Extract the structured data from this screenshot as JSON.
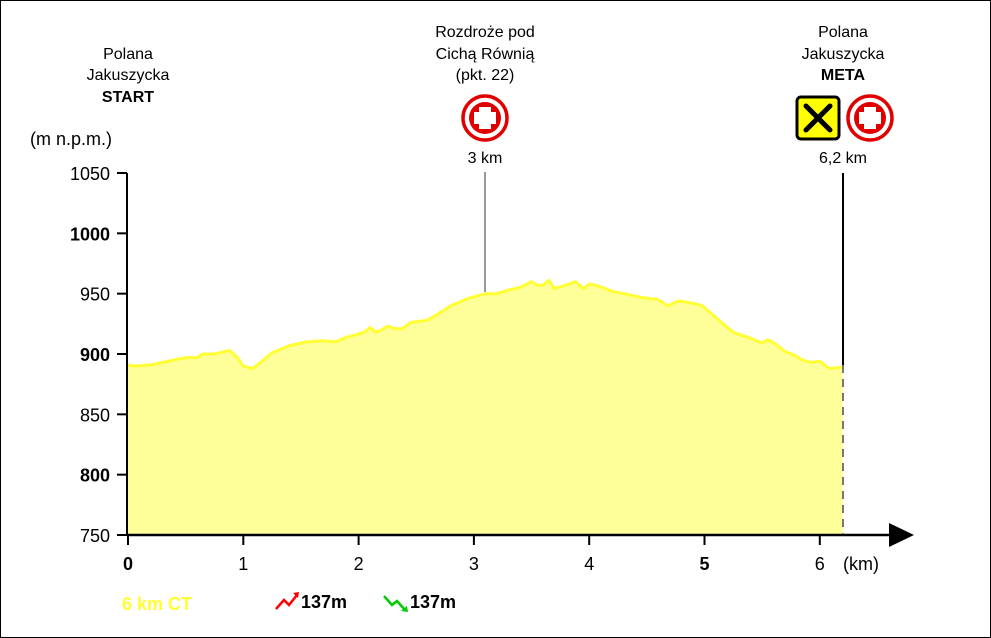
{
  "chart_data": {
    "type": "area",
    "ylabel": "(m n.p.m.)",
    "xlabel": "(km)",
    "xlim": [
      0,
      6.85
    ],
    "ylim": [
      750,
      1050
    ],
    "y_ticks": [
      {
        "value": 1050,
        "label": "1050",
        "bold": false
      },
      {
        "value": 1000,
        "label": "1000",
        "bold": true
      },
      {
        "value": 950,
        "label": "950",
        "bold": false
      },
      {
        "value": 900,
        "label": "900",
        "bold": true
      },
      {
        "value": 850,
        "label": "850",
        "bold": false
      },
      {
        "value": 800,
        "label": "800",
        "bold": true
      },
      {
        "value": 750,
        "label": "750",
        "bold": false
      }
    ],
    "x_ticks": [
      {
        "value": 0,
        "label": "0",
        "bold": true
      },
      {
        "value": 1,
        "label": "1",
        "bold": false
      },
      {
        "value": 2,
        "label": "2",
        "bold": false
      },
      {
        "value": 3,
        "label": "3",
        "bold": false
      },
      {
        "value": 4,
        "label": "4",
        "bold": false
      },
      {
        "value": 5,
        "label": "5",
        "bold": true
      },
      {
        "value": 6,
        "label": "6",
        "bold": false
      }
    ],
    "fill_color": "#ffff99",
    "line_color": "#ffff33",
    "grid": false,
    "profile": {
      "x": [
        0,
        0.05,
        0.2,
        0.35,
        0.5,
        0.6,
        0.65,
        0.75,
        0.88,
        0.95,
        1.0,
        1.08,
        1.15,
        1.25,
        1.4,
        1.55,
        1.7,
        1.8,
        1.9,
        1.98,
        2.05,
        2.1,
        2.15,
        2.2,
        2.25,
        2.32,
        2.38,
        2.45,
        2.52,
        2.6,
        2.72,
        2.8,
        2.95,
        3.1,
        3.2,
        3.3,
        3.4,
        3.5,
        3.55,
        3.6,
        3.65,
        3.7,
        3.72,
        3.8,
        3.88,
        3.95,
        4.0,
        4.05,
        4.12,
        4.2,
        4.3,
        4.45,
        4.6,
        4.68,
        4.78,
        4.9,
        4.98,
        5.1,
        5.25,
        5.4,
        5.5,
        5.55,
        5.62,
        5.7,
        5.78,
        5.85,
        5.92,
        6.0,
        6.08,
        6.2
      ],
      "y": [
        891,
        890,
        891,
        894,
        897,
        897,
        900,
        900,
        903,
        897,
        890,
        888,
        893,
        901,
        907,
        910,
        911,
        910,
        914,
        916,
        918,
        922,
        918,
        920,
        923,
        921,
        921,
        926,
        927,
        928,
        935,
        940,
        946,
        950,
        950,
        953,
        955,
        960,
        957,
        957,
        961,
        954,
        955,
        957,
        960,
        954,
        958,
        957,
        955,
        952,
        950,
        947,
        945,
        940,
        944,
        942,
        940,
        930,
        918,
        913,
        909,
        912,
        908,
        902,
        899,
        895,
        893,
        894,
        888,
        889
      ]
    },
    "waypoints": [
      {
        "km": 0,
        "name_lines": [
          "Polana",
          "Jakuszycka"
        ],
        "tag": "START",
        "km_label": ""
      },
      {
        "km": 3.1,
        "name_lines": [
          "Rozdroże pod",
          "Cichą Równią",
          "(pkt. 22)"
        ],
        "tag": "",
        "km_label": "3 km",
        "icons": [
          "first-aid"
        ]
      },
      {
        "km": 6.2,
        "name_lines": [
          "Polana",
          "Jakuszycka"
        ],
        "tag": "META",
        "km_label": "6,2 km",
        "icons": [
          "food",
          "first-aid"
        ]
      }
    ],
    "route_label": "6 km CT",
    "ascent": "137m",
    "descent": "137m",
    "route_label_color": "#ffff33",
    "ascent_color": "#ff0000",
    "descent_color": "#00cc00"
  }
}
